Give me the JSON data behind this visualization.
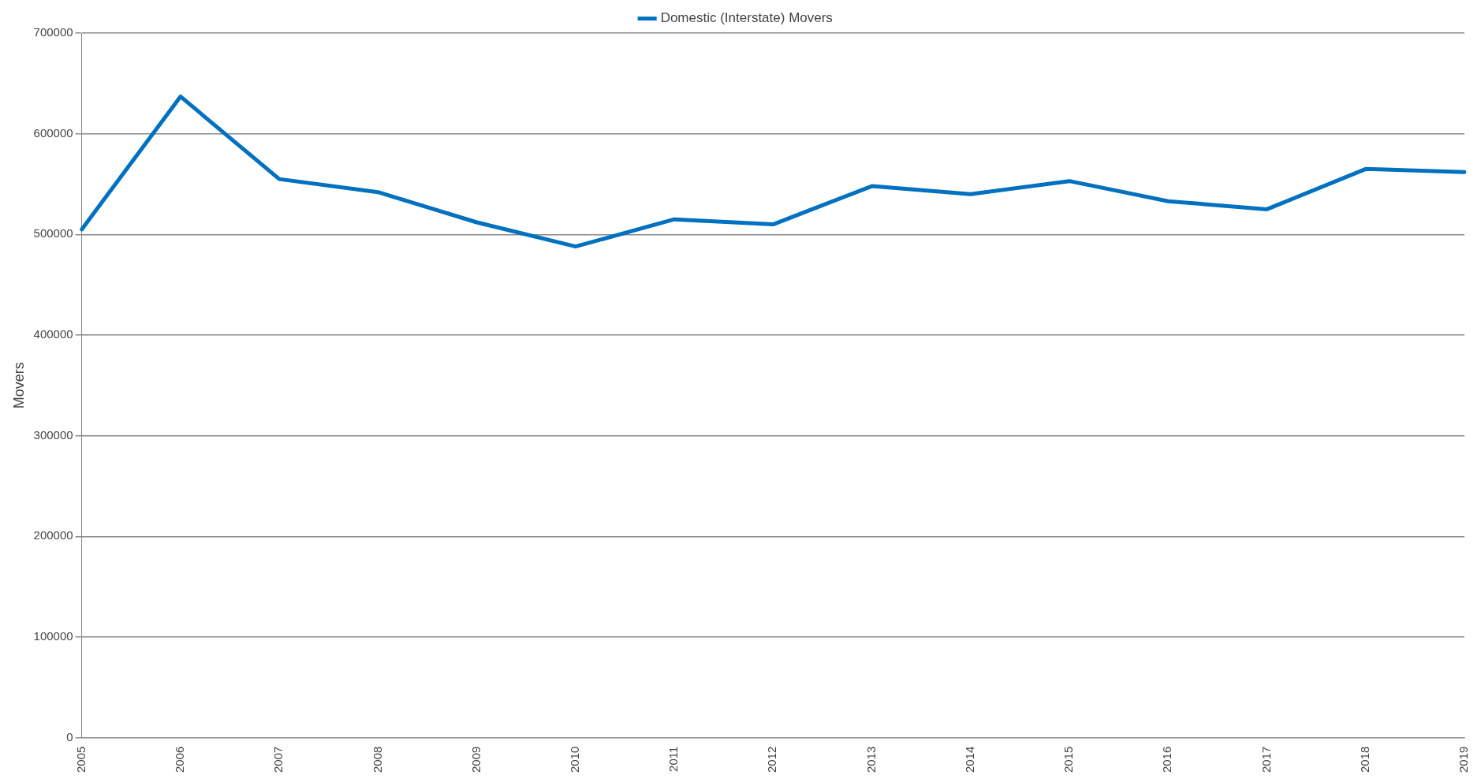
{
  "chart_data": {
    "type": "line",
    "ylabel": "Movers",
    "categories": [
      "2005",
      "2006",
      "2007",
      "2008",
      "2009",
      "2010",
      "2011",
      "2012",
      "2013",
      "2014",
      "2015",
      "2016",
      "2017",
      "2018",
      "2019"
    ],
    "series": [
      {
        "name": "Domestic (Interstate) Movers",
        "color": "#0070c0",
        "values": [
          505000,
          637000,
          555000,
          542000,
          512000,
          488000,
          515000,
          510000,
          548000,
          540000,
          553000,
          533000,
          525000,
          565000,
          562000
        ]
      }
    ],
    "ylim": [
      0,
      700000
    ],
    "yticks": [
      0,
      100000,
      200000,
      300000,
      400000,
      500000,
      600000,
      700000
    ],
    "grid": "y",
    "legend": "top",
    "marker": "none",
    "line_style": "solid"
  }
}
